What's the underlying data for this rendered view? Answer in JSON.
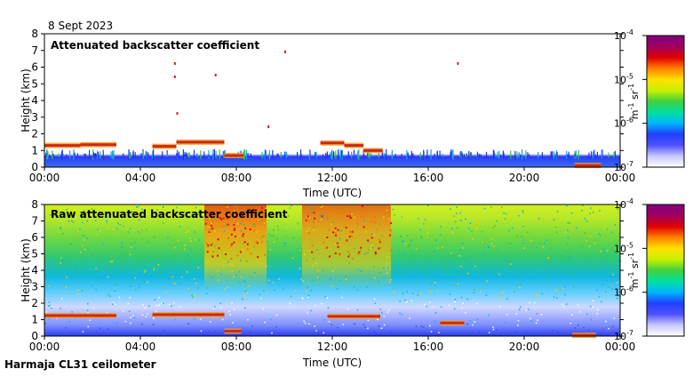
{
  "date": "8 Sept 2023",
  "footer": "Harmaja CL31 ceilometer",
  "colors": {
    "cloud": "#cc2a10",
    "cloud_edge": "#f0a030",
    "colorbar": [
      "#ffffff",
      "#c8c8ff",
      "#5050ff",
      "#2040ff",
      "#00b4ff",
      "#00e0a0",
      "#40d040",
      "#c8f000",
      "#ffe000",
      "#ff8000",
      "#e00000",
      "#a00060",
      "#800080"
    ]
  },
  "chart_data": [
    {
      "type": "heatmap",
      "title": "Attenuated backscatter coefficient",
      "xlabel": "Time (UTC)",
      "ylabel": "Height (km)",
      "xlim": [
        0,
        24
      ],
      "ylim": [
        0,
        8
      ],
      "xticks": [
        "00:00",
        "04:00",
        "08:00",
        "12:00",
        "16:00",
        "20:00",
        "00:00"
      ],
      "yticks": [
        "0",
        "1",
        "2",
        "3",
        "4",
        "5",
        "6",
        "7",
        "8"
      ],
      "colorbar": {
        "label": "m-1 sr-1",
        "ticks": [
          "10-7",
          "10-6",
          "10-5",
          "10-4"
        ],
        "range": [
          1e-07,
          0.0001
        ]
      },
      "cloud_layers": [
        {
          "start": 0.0,
          "end": 1.5,
          "height": 1.3
        },
        {
          "start": 1.5,
          "end": 3.0,
          "height": 1.35
        },
        {
          "start": 4.5,
          "end": 5.5,
          "height": 1.25
        },
        {
          "start": 5.5,
          "end": 7.5,
          "height": 1.5
        },
        {
          "start": 7.5,
          "end": 8.3,
          "height": 0.7
        },
        {
          "start": 11.5,
          "end": 12.5,
          "height": 1.45
        },
        {
          "start": 12.5,
          "end": 13.3,
          "height": 1.3
        },
        {
          "start": 13.3,
          "end": 14.1,
          "height": 1.0
        },
        {
          "start": 22.1,
          "end": 23.2,
          "height": 0.1
        }
      ]
    },
    {
      "type": "heatmap",
      "title": "Raw attenuated backscatter coefficient",
      "xlabel": "Time (UTC)",
      "ylabel": "Height (km)",
      "xlim": [
        0,
        24
      ],
      "ylim": [
        0,
        8
      ],
      "xticks": [
        "00:00",
        "04:00",
        "08:00",
        "12:00",
        "16:00",
        "20:00",
        "00:00"
      ],
      "yticks": [
        "0",
        "1",
        "2",
        "3",
        "4",
        "5",
        "6",
        "7",
        "8"
      ],
      "colorbar": {
        "label": "m-1 sr-1",
        "ticks": [
          "10-7",
          "10-6",
          "10-5",
          "10-4"
        ],
        "range": [
          1e-07,
          0.0001
        ]
      },
      "cloud_layers": [
        {
          "start": 0.0,
          "end": 3.0,
          "height": 1.25
        },
        {
          "start": 4.5,
          "end": 7.5,
          "height": 1.3
        },
        {
          "start": 7.5,
          "end": 8.2,
          "height": 0.3
        },
        {
          "start": 11.8,
          "end": 14.0,
          "height": 1.2
        },
        {
          "start": 16.5,
          "end": 17.5,
          "height": 0.8
        },
        {
          "start": 22.0,
          "end": 23.0,
          "height": 0.05
        }
      ]
    }
  ]
}
